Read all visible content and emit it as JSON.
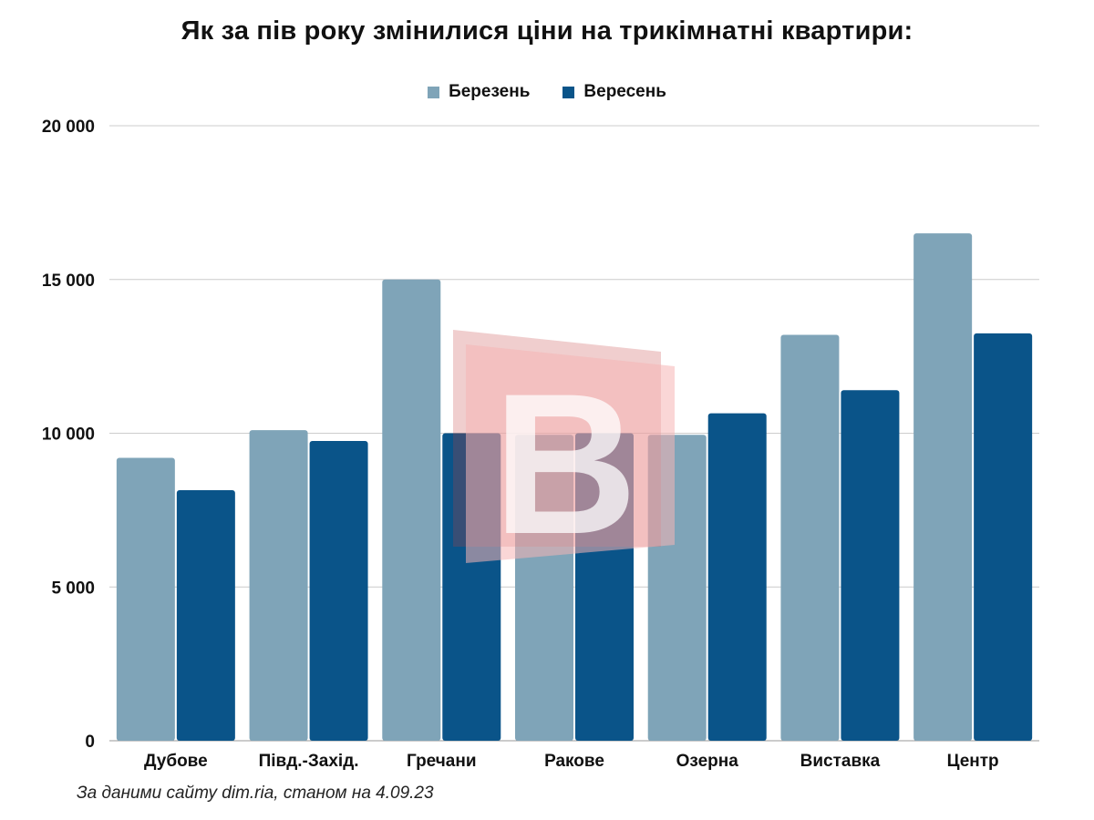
{
  "chart_data": {
    "type": "bar",
    "title": "Як за пів року змінилися ціни на трикімнатні квартири:",
    "categories": [
      "Дубове",
      "Півд.-Захід.",
      "Гречани",
      "Ракове",
      "Озерна",
      "Виставка",
      "Центр"
    ],
    "series": [
      {
        "name": "Березень",
        "color": "#7fa4b8",
        "values": [
          9200,
          10100,
          15000,
          9950,
          9950,
          13200,
          16500
        ]
      },
      {
        "name": "Вересень",
        "color": "#0a5489",
        "values": [
          8150,
          9750,
          10000,
          10000,
          10650,
          11400,
          13250
        ]
      }
    ],
    "yticks": [
      0,
      5000,
      10000,
      15000,
      20000
    ],
    "ytick_labels": [
      "0",
      "5 000",
      "10 000",
      "15 000",
      "20 000"
    ],
    "ylim": [
      0,
      20000
    ],
    "xlabel": "",
    "ylabel": "",
    "grid": true,
    "legend_position": "top-center"
  },
  "source_note": "За даними сайту dim.ria, станом на 4.09.23",
  "watermark_logo": "В",
  "colors": {
    "grid": "#cccccc",
    "axis": "#999999",
    "watermark_light": "#f6b5b5",
    "watermark_dark": "#c23a3a"
  }
}
